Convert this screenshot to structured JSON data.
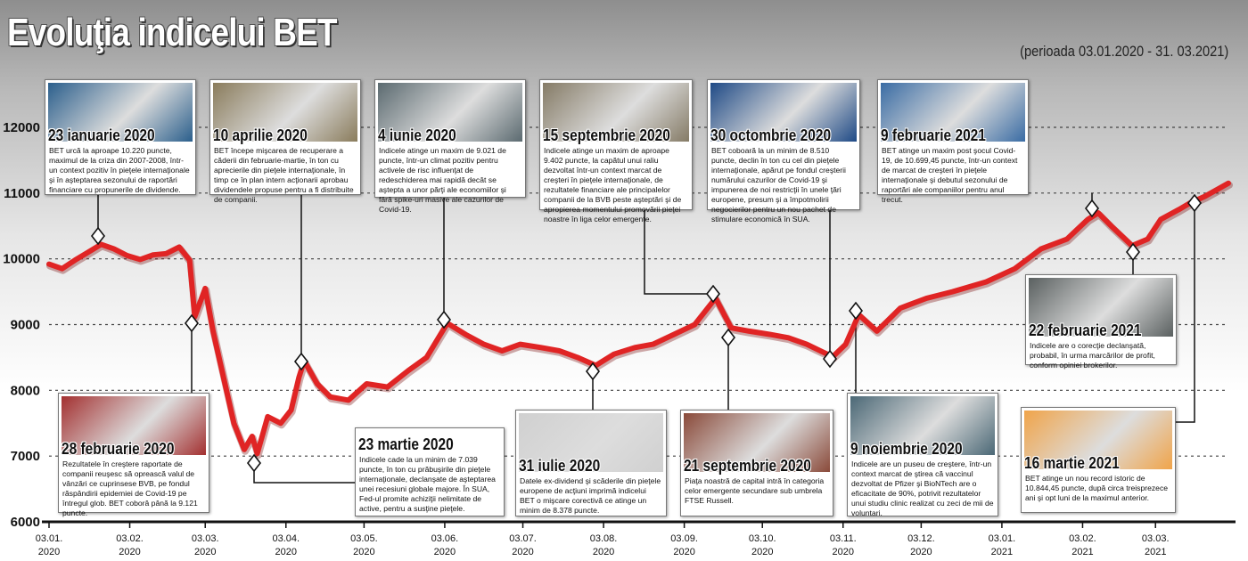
{
  "title": "Evoluţia indicelui BET",
  "period": "(perioada 03.01.2020 - 31. 03.2021)",
  "chart_data": {
    "type": "line",
    "title": "Evoluţia indicelui BET",
    "subtitle": "(perioada 03.01.2020 - 31. 03.2021)",
    "series_color": "#e02424",
    "y_ticks": [
      6000,
      7000,
      8000,
      9000,
      10000,
      11000,
      12000
    ],
    "ylim": [
      6000,
      12000
    ],
    "x_ticks": [
      {
        "line1": "03.01.",
        "line2": "2020",
        "date": "2020-01-03"
      },
      {
        "line1": "03.02.",
        "line2": "2020",
        "date": "2020-02-03"
      },
      {
        "line1": "03.03.",
        "line2": "2020",
        "date": "2020-03-03"
      },
      {
        "line1": "03.04.",
        "line2": "2020",
        "date": "2020-04-03"
      },
      {
        "line1": "03.05.",
        "line2": "2020",
        "date": "2020-05-03"
      },
      {
        "line1": "03.06.",
        "line2": "2020",
        "date": "2020-06-03"
      },
      {
        "line1": "03.07.",
        "line2": "2020",
        "date": "2020-07-03"
      },
      {
        "line1": "03.08.",
        "line2": "2020",
        "date": "2020-08-03"
      },
      {
        "line1": "03.09.",
        "line2": "2020",
        "date": "2020-09-03"
      },
      {
        "line1": "03.10.",
        "line2": "2020",
        "date": "2020-10-03"
      },
      {
        "line1": "03.11.",
        "line2": "2020",
        "date": "2020-11-03"
      },
      {
        "line1": "03.12.",
        "line2": "2020",
        "date": "2020-12-03"
      },
      {
        "line1": "03.01.",
        "line2": "2021",
        "date": "2021-01-03"
      },
      {
        "line1": "03.02.",
        "line2": "2021",
        "date": "2021-02-03"
      },
      {
        "line1": "03.03.",
        "line2": "2021",
        "date": "2021-03-03"
      }
    ],
    "xlim": [
      "2020-01-03",
      "2021-03-31"
    ],
    "points": [
      [
        "2020-01-03",
        9920
      ],
      [
        "2020-01-08",
        9850
      ],
      [
        "2020-01-13",
        9980
      ],
      [
        "2020-01-18",
        10100
      ],
      [
        "2020-01-23",
        10220
      ],
      [
        "2020-01-28",
        10150
      ],
      [
        "2020-02-02",
        10050
      ],
      [
        "2020-02-07",
        9990
      ],
      [
        "2020-02-12",
        10060
      ],
      [
        "2020-02-17",
        10080
      ],
      [
        "2020-02-22",
        10180
      ],
      [
        "2020-02-26",
        9980
      ],
      [
        "2020-02-28",
        9121
      ],
      [
        "2020-03-03",
        9550
      ],
      [
        "2020-03-06",
        8900
      ],
      [
        "2020-03-10",
        8200
      ],
      [
        "2020-03-14",
        7500
      ],
      [
        "2020-03-18",
        7100
      ],
      [
        "2020-03-21",
        7300
      ],
      [
        "2020-03-23",
        7039
      ],
      [
        "2020-03-27",
        7600
      ],
      [
        "2020-04-01",
        7500
      ],
      [
        "2020-04-05",
        7700
      ],
      [
        "2020-04-08",
        8200
      ],
      [
        "2020-04-10",
        8450
      ],
      [
        "2020-04-15",
        8100
      ],
      [
        "2020-04-20",
        7900
      ],
      [
        "2020-04-27",
        7850
      ],
      [
        "2020-05-04",
        8100
      ],
      [
        "2020-05-12",
        8050
      ],
      [
        "2020-05-20",
        8300
      ],
      [
        "2020-05-27",
        8500
      ],
      [
        "2020-06-04",
        9021
      ],
      [
        "2020-06-11",
        8850
      ],
      [
        "2020-06-18",
        8700
      ],
      [
        "2020-06-25",
        8600
      ],
      [
        "2020-07-02",
        8700
      ],
      [
        "2020-07-10",
        8650
      ],
      [
        "2020-07-17",
        8600
      ],
      [
        "2020-07-24",
        8500
      ],
      [
        "2020-07-31",
        8378
      ],
      [
        "2020-08-07",
        8550
      ],
      [
        "2020-08-15",
        8650
      ],
      [
        "2020-08-22",
        8700
      ],
      [
        "2020-08-30",
        8850
      ],
      [
        "2020-09-07",
        9000
      ],
      [
        "2020-09-15",
        9402
      ],
      [
        "2020-09-21",
        8950
      ],
      [
        "2020-09-28",
        8900
      ],
      [
        "2020-10-06",
        8850
      ],
      [
        "2020-10-13",
        8800
      ],
      [
        "2020-10-20",
        8700
      ],
      [
        "2020-10-30",
        8510
      ],
      [
        "2020-11-04",
        8700
      ],
      [
        "2020-11-09",
        9150
      ],
      [
        "2020-11-16",
        8900
      ],
      [
        "2020-11-25",
        9250
      ],
      [
        "2020-12-05",
        9400
      ],
      [
        "2020-12-15",
        9500
      ],
      [
        "2020-12-28",
        9650
      ],
      [
        "2021-01-08",
        9850
      ],
      [
        "2021-01-18",
        10150
      ],
      [
        "2021-01-28",
        10300
      ],
      [
        "2021-02-05",
        10600
      ],
      [
        "2021-02-09",
        10699
      ],
      [
        "2021-02-14",
        10500
      ],
      [
        "2021-02-22",
        10200
      ],
      [
        "2021-02-28",
        10300
      ],
      [
        "2021-03-05",
        10600
      ],
      [
        "2021-03-12",
        10750
      ],
      [
        "2021-03-16",
        10844
      ],
      [
        "2021-03-22",
        10950
      ],
      [
        "2021-03-31",
        11150
      ]
    ],
    "events": [
      {
        "date": "2020-01-23",
        "value": 10220,
        "label": "23 ianuarie 2020",
        "text": "BET urcă la aproape 10.220 puncte, maximul de la criza din 2007-2008, într-un context pozitiv în pieţele internaţionale şi în aşteptarea sezonului de raportări financiare cu propunerile de dividende."
      },
      {
        "date": "2020-02-28",
        "value": 9121,
        "label": "28 februarie 2020",
        "text": "Rezultatele în creştere raportate de companii reuşesc să oprească valul de vânzări ce cuprinsese BVB, pe fondul răspândirii epidemiei de Covid-19 pe întregul glob. BET coborâ până la 9.121 puncte."
      },
      {
        "date": "2020-03-23",
        "value": 7039,
        "label": "23 martie 2020",
        "text": "Indicele cade la un minim de 7.039 puncte, în ton cu prăbuşirile din pieţele internaţionale, declanşate de aşteptarea unei recesiuni globale majore. În SUA, Fed-ul promite achiziţii nelimitate de active, pentru a susţine pieţele."
      },
      {
        "date": "2020-04-10",
        "value": 8450,
        "label": "10 aprilie 2020",
        "text": "BET începe mişcarea de recuperare a căderii din februarie-martie, în ton cu aprecierile din pieţele internaţionale, în timp ce în plan intern acţionarii aprobau dividendele propuse pentru a fi distribuite de companii."
      },
      {
        "date": "2020-06-04",
        "value": 9021,
        "label": "4 iunie 2020",
        "text": "Indicele atinge un maxim de 9.021 de puncte, într-un climat pozitiv pentru activele de risc influenţat de redeschiderea mai rapidă decât se aştepta a unor părţi ale economiilor şi fără spike-uri masive ale cazurilor de Covid-19."
      },
      {
        "date": "2020-07-31",
        "value": 8378,
        "label": "31 iulie 2020",
        "text": "Datele ex-dividend şi scăderile din pieţele europene de acţiuni imprimă indicelui BET o mişcare corectivă ce atinge un minim de 8.378 puncte."
      },
      {
        "date": "2020-09-15",
        "value": 9402,
        "label": "15 septembrie 2020",
        "text": "Indicele atinge un maxim de aproape 9.402 puncte, la capătul unui raliu dezvoltat într-un context marcat de creşteri în pieţele internaţionale, de rezultatele financiare ale principalelor companii de la BVB peste aşteptări şi de apropierea momentului promovării pieţei noastre în liga celor emergente."
      },
      {
        "date": "2020-09-21",
        "value": 8950,
        "label": "21 septembrie 2020",
        "text": "Piaţa noastră de capital intră în categoria celor emergente secundare sub umbrela FTSE Russell."
      },
      {
        "date": "2020-10-30",
        "value": 8510,
        "label": "30 octombrie 2020",
        "text": "BET coboară la un minim de 8.510 puncte, declin în ton cu cel din pieţele internaţionale, apărut pe fondul creşterii numărului cazurilor de Covid-19 şi impunerea de noi restricţii în unele ţări europene, presum şi a împotmolirii negocierilor pentru un nou pachet de stimulare economică în SUA."
      },
      {
        "date": "2020-11-09",
        "value": 9150,
        "label": "9 noiembrie 2020",
        "text": "Indicele are un puseu de creştere, într-un context marcat de ştirea că vaccinul dezvoltat de Pfizer şi BioNTech are o eficacitate de 90%, potrivit rezultatelor unui studiu clinic realizat cu zeci de mii de voluntari."
      },
      {
        "date": "2021-02-09",
        "value": 10699,
        "label": "9 februarie 2021",
        "text": "BET atinge un maxim post şocul Covid-19, de 10.699,45 puncte, într-un context de marcat de creşteri în pieţele internaţionale şi debutul sezonului de raportări ale companiilor pentru anul trecut."
      },
      {
        "date": "2021-02-22",
        "value": 10200,
        "label": "22 februarie 2021",
        "text": "Indicele are o corecţie declanşată, probabil, în urma marcărilor de profit, conform opiniei brokerilor."
      },
      {
        "date": "2021-03-16",
        "value": 10844,
        "label": "16 martie 2021",
        "text": "BET atinge un nou record istoric de 10.844,45 puncte, după circa treisprezece ani şi opt luni de la maximul anterior."
      }
    ]
  }
}
